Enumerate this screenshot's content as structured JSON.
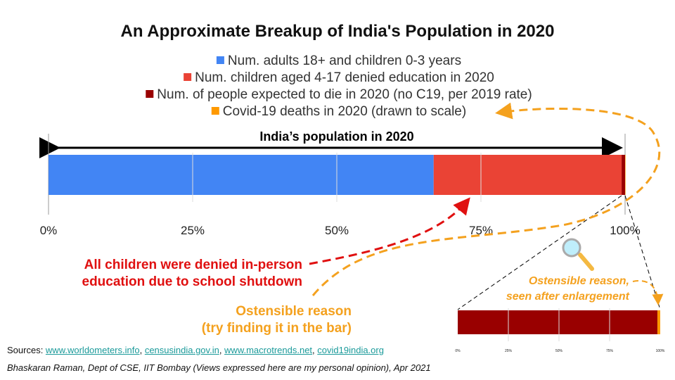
{
  "chart_data": [
    {
      "type": "bar",
      "orientation": "horizontal-stacked",
      "title": "An Approximate Breakup of India's Population in 2020",
      "bar_label": "India’s population in 2020",
      "xlim": [
        0,
        100
      ],
      "x_ticks": [
        "0%",
        "25%",
        "50%",
        "75%",
        "100%"
      ],
      "legend_placement": "top",
      "series": [
        {
          "name": "Num. adults 18+ and children 0-3 years",
          "values": [
            66.8
          ],
          "color": "#4285f4"
        },
        {
          "name": "Num. children aged 4-17 denied education in 2020",
          "values": [
            32.6
          ],
          "color": "#ea4335"
        },
        {
          "name": "Num. of people expected to die in 2020 (no C19, per 2019 rate)",
          "values": [
            0.6
          ],
          "color": "#990000"
        },
        {
          "name": "Covid-19 deaths in 2020 (drawn to scale)",
          "values": [
            0.01
          ],
          "color": "#ff9900"
        }
      ]
    },
    {
      "type": "bar",
      "orientation": "horizontal-stacked",
      "xlim": [
        0,
        100
      ],
      "x_ticks": [
        "0%",
        "25%",
        "50%",
        "75%",
        "100%"
      ],
      "series": [
        {
          "values": [
            98.6
          ],
          "color": "#990000"
        },
        {
          "values": [
            1.4
          ],
          "color": "#ff9900"
        }
      ]
    }
  ],
  "annotations": {
    "children": "All children were denied in-person\neducation due to school shutdown",
    "reason_line1": "Ostensible reason",
    "reason_line2": "(try finding it in the bar)",
    "enlarged_line1": "Ostensible reason,",
    "enlarged_line2": "seen after enlargement",
    "colors": {
      "red": "#e01010",
      "orange": "#f4a11e"
    }
  },
  "footer": {
    "sources_label": "Sources: ",
    "links": [
      "www.worldometers.info",
      "censusindia.gov.in",
      "www.macrotrends.net",
      "covid19india.org"
    ],
    "credit": "Bhaskaran Raman, Dept of CSE, IIT Bombay (Views expressed here are my personal opinion), Apr 2021"
  }
}
